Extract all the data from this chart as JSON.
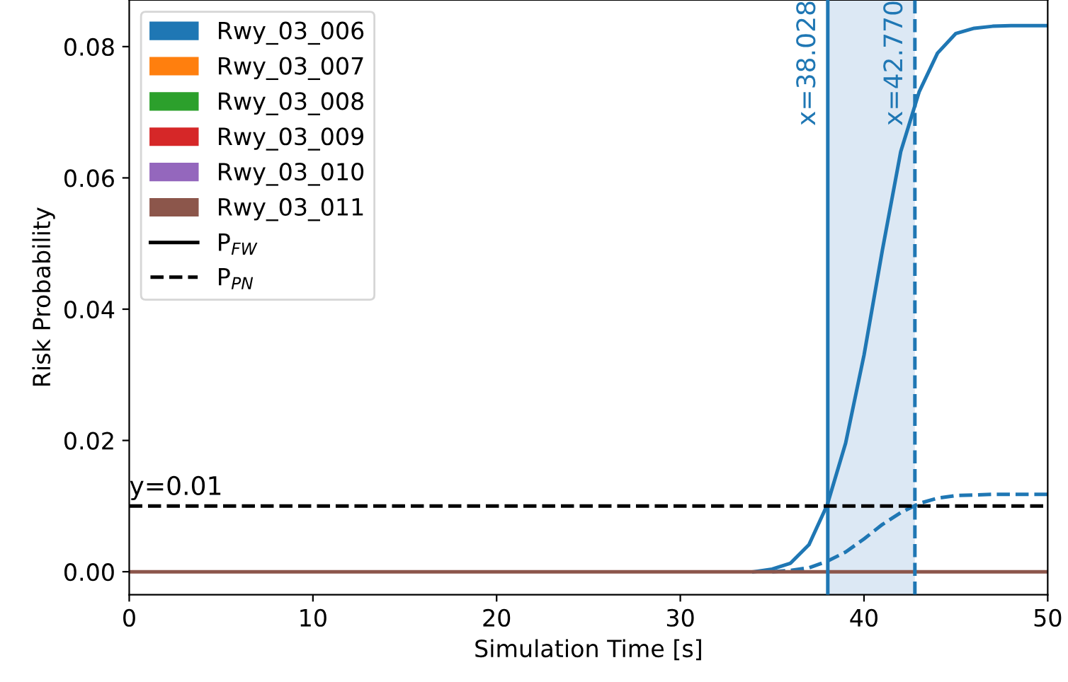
{
  "chart_data": {
    "type": "line",
    "xlabel": "Simulation Time [s]",
    "ylabel": "Risk Probability",
    "x": [
      0,
      1,
      2,
      3,
      4,
      5,
      6,
      7,
      8,
      9,
      10,
      11,
      12,
      13,
      14,
      15,
      16,
      17,
      18,
      19,
      20,
      21,
      22,
      23,
      24,
      25,
      26,
      27,
      28,
      29,
      30,
      31,
      32,
      33,
      34,
      35,
      36,
      37,
      38,
      39,
      40,
      41,
      42,
      43,
      44,
      45,
      46,
      47,
      48,
      49,
      50
    ],
    "series": [
      {
        "name": "Rwy_03_006",
        "color": "#1f77b4",
        "values": [
          null,
          null,
          null,
          null,
          null,
          null,
          null,
          null,
          null,
          null,
          null,
          null,
          null,
          null,
          null,
          null,
          null,
          null,
          null,
          null,
          null,
          null,
          null,
          null,
          null,
          null,
          null,
          null,
          null,
          null,
          null,
          null,
          null,
          null,
          0,
          0.0004,
          0.0013,
          0.0041,
          0.0102,
          0.0196,
          0.033,
          0.049,
          0.064,
          0.0731,
          0.079,
          0.082,
          0.0828,
          0.0831,
          0.0832,
          0.0832,
          0.0832
        ]
      },
      {
        "color": "#1f77b4",
        "line_style": "dashed",
        "values": [
          null,
          null,
          null,
          null,
          null,
          null,
          null,
          null,
          null,
          null,
          null,
          null,
          null,
          null,
          null,
          null,
          null,
          null,
          null,
          null,
          null,
          null,
          null,
          null,
          null,
          null,
          null,
          null,
          null,
          null,
          null,
          null,
          null,
          null,
          null,
          0,
          0.0002,
          0.0006,
          0.0016,
          0.003,
          0.005,
          0.0072,
          0.009,
          0.0104,
          0.0112,
          0.0116,
          0.0117,
          0.0118,
          0.0118,
          0.0118,
          0.0118
        ]
      },
      {
        "name": "Rwy_03_007",
        "color": "#ff7f0e",
        "values": [
          null,
          null,
          null,
          null,
          null,
          null,
          null,
          null,
          null,
          null,
          null,
          null,
          null,
          null,
          null,
          null,
          null,
          null,
          null,
          null,
          null,
          null,
          null,
          null,
          null,
          null,
          null,
          null,
          null,
          null,
          null,
          null,
          null,
          null,
          null,
          null,
          null,
          null,
          null,
          null,
          null,
          null,
          null,
          null,
          null,
          null,
          null,
          null,
          null,
          null,
          null
        ]
      },
      {
        "name": "Rwy_03_008",
        "color": "#2ca02c",
        "values": [
          null,
          null,
          null,
          null,
          null,
          null,
          null,
          null,
          null,
          null,
          null,
          null,
          null,
          null,
          null,
          null,
          null,
          null,
          null,
          null,
          null,
          null,
          null,
          null,
          null,
          null,
          null,
          null,
          null,
          null,
          null,
          null,
          null,
          null,
          null,
          null,
          null,
          null,
          null,
          null,
          null,
          null,
          null,
          null,
          null,
          null,
          null,
          null,
          null,
          null,
          null
        ]
      },
      {
        "name": "Rwy_03_009",
        "color": "#d62728",
        "values": [
          null,
          null,
          null,
          null,
          null,
          null,
          null,
          null,
          null,
          null,
          null,
          null,
          null,
          null,
          null,
          null,
          null,
          null,
          null,
          null,
          null,
          null,
          null,
          null,
          null,
          null,
          null,
          null,
          null,
          null,
          null,
          null,
          null,
          null,
          null,
          null,
          null,
          null,
          null,
          null,
          null,
          null,
          null,
          null,
          null,
          null,
          null,
          null,
          null,
          null,
          null
        ]
      },
      {
        "name": "Rwy_03_010",
        "color": "#9467bd",
        "values": [
          null,
          null,
          null,
          null,
          null,
          null,
          null,
          null,
          null,
          null,
          null,
          null,
          null,
          null,
          null,
          null,
          null,
          null,
          null,
          null,
          null,
          null,
          null,
          null,
          null,
          null,
          null,
          null,
          null,
          null,
          null,
          null,
          null,
          null,
          null,
          null,
          null,
          null,
          null,
          null,
          null,
          null,
          null,
          null,
          null,
          null,
          null,
          null,
          null,
          null,
          null
        ]
      },
      {
        "name": "Rwy_03_011",
        "color": "#8c564b",
        "values": [
          0,
          0,
          0,
          0,
          0,
          0,
          0,
          0,
          0,
          0,
          0,
          0,
          0,
          0,
          0,
          0,
          0,
          0,
          0,
          0,
          0,
          0,
          0,
          0,
          0,
          0,
          0,
          0,
          0,
          0,
          0,
          0,
          0,
          0,
          0,
          0,
          0,
          0,
          0,
          0,
          0,
          0,
          0,
          0,
          0,
          0,
          0,
          0,
          0,
          0,
          0
        ]
      },
      {
        "name": "P$_{FW}$",
        "color": "#000000",
        "line_style": "solid",
        "values": [
          null,
          null,
          null,
          null,
          null,
          null,
          null,
          null,
          null,
          null,
          null,
          null,
          null,
          null,
          null,
          null,
          null,
          null,
          null,
          null,
          null,
          null,
          null,
          null,
          null,
          null,
          null,
          null,
          null,
          null,
          null,
          null,
          null,
          null,
          null,
          null,
          null,
          null,
          null,
          null,
          null,
          null,
          null,
          null,
          null,
          null,
          null,
          null,
          null,
          null,
          null
        ]
      },
      {
        "name": "P$_{PN}$",
        "color": "#000000",
        "line_style": "dashed",
        "values": [
          null,
          null,
          null,
          null,
          null,
          null,
          null,
          null,
          null,
          null,
          null,
          null,
          null,
          null,
          null,
          null,
          null,
          null,
          null,
          null,
          null,
          null,
          null,
          null,
          null,
          null,
          null,
          null,
          null,
          null,
          null,
          null,
          null,
          null,
          null,
          null,
          null,
          null,
          null,
          null,
          null,
          null,
          null,
          null,
          null,
          null,
          null,
          null,
          null,
          null,
          null
        ]
      }
    ],
    "ref_lines": [
      {
        "axis": "x",
        "value": 38.028,
        "label": "x=38.028",
        "color": "#1f77b4",
        "line_style": "solid"
      },
      {
        "axis": "x",
        "value": 42.77,
        "label": "x=42.770",
        "color": "#1f77b4",
        "line_style": "dashed"
      },
      {
        "axis": "y",
        "value": 0.01,
        "label": "y=0.01",
        "color": "#000000",
        "line_style": "dashed"
      }
    ],
    "bands": [
      {
        "axis": "x",
        "from": 38.028,
        "to": 42.77,
        "color": "#dce8f4"
      }
    ],
    "xlim": [
      0,
      50
    ],
    "xticks": [
      0,
      10,
      20,
      30,
      40,
      50
    ],
    "ylim": [
      -0.0035,
      0.0871
    ],
    "yticks": [
      {
        "value": 0,
        "label": "0.00"
      },
      {
        "value": 0.02,
        "label": "0.02"
      },
      {
        "value": 0.04,
        "label": "0.04"
      },
      {
        "value": 0.06,
        "label": "0.06"
      },
      {
        "value": 0.08,
        "label": "0.08"
      }
    ],
    "grid": false,
    "legend": "top left"
  }
}
